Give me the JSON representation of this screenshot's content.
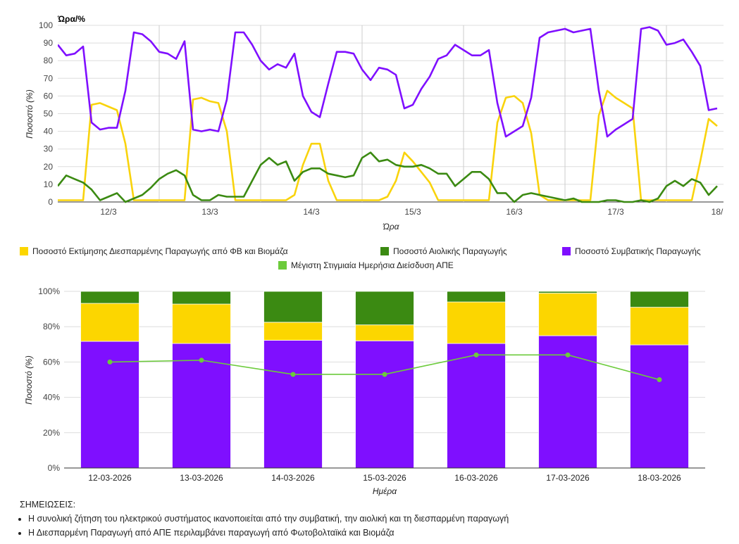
{
  "chart_data": [
    {
      "type": "line",
      "title": "Ώρα/%",
      "xlabel": "Ώρα",
      "ylabel": "Ποσοστό (%)",
      "ylim": [
        0,
        100
      ],
      "yticks": [
        0,
        10,
        20,
        30,
        40,
        50,
        60,
        70,
        80,
        90,
        100
      ],
      "xlim": [
        "12/3 00:00",
        "18/3 13:30"
      ],
      "xtick_labels": [
        "12/3",
        "13/3",
        "14/3",
        "15/3",
        "16/3",
        "17/3",
        "18/"
      ],
      "grid": true,
      "x": [
        "12/3 00:00",
        "12/3 02:00",
        "12/3 04:00",
        "12/3 06:00",
        "12/3 08:00",
        "12/3 10:00",
        "12/3 12:00",
        "12/3 14:00",
        "12/3 16:00",
        "12/3 18:00",
        "12/3 20:00",
        "12/3 22:00",
        "13/3 00:00",
        "13/3 02:00",
        "13/3 04:00",
        "13/3 06:00",
        "13/3 08:00",
        "13/3 10:00",
        "13/3 12:00",
        "13/3 14:00",
        "13/3 16:00",
        "13/3 18:00",
        "13/3 20:00",
        "13/3 22:00",
        "14/3 00:00",
        "14/3 02:00",
        "14/3 04:00",
        "14/3 06:00",
        "14/3 08:00",
        "14/3 10:00",
        "14/3 12:00",
        "14/3 14:00",
        "14/3 16:00",
        "14/3 18:00",
        "14/3 20:00",
        "14/3 22:00",
        "15/3 00:00",
        "15/3 02:00",
        "15/3 04:00",
        "15/3 06:00",
        "15/3 08:00",
        "15/3 10:00",
        "15/3 12:00",
        "15/3 14:00",
        "15/3 16:00",
        "15/3 18:00",
        "15/3 20:00",
        "15/3 22:00",
        "16/3 00:00",
        "16/3 02:00",
        "16/3 04:00",
        "16/3 06:00",
        "16/3 08:00",
        "16/3 10:00",
        "16/3 12:00",
        "16/3 14:00",
        "16/3 16:00",
        "16/3 18:00",
        "16/3 20:00",
        "16/3 22:00",
        "17/3 00:00",
        "17/3 02:00",
        "17/3 04:00",
        "17/3 06:00",
        "17/3 08:00",
        "17/3 10:00",
        "17/3 12:00",
        "17/3 14:00",
        "17/3 16:00",
        "17/3 18:00",
        "17/3 20:00",
        "17/3 22:00",
        "18/3 00:00",
        "18/3 02:00",
        "18/3 04:00",
        "18/3 06:00",
        "18/3 08:00",
        "18/3 10:00",
        "18/3 12:00"
      ],
      "series": [
        {
          "name": "Ποσοστό Εκτίμησης Διεσπαρμένης Παραγωγής από ΦΒ και Βιομάζα",
          "color": "#f9d30c",
          "values": [
            1,
            1,
            1,
            1,
            55,
            56,
            54,
            52,
            33,
            1,
            1,
            1,
            1,
            1,
            1,
            1,
            58,
            59,
            57,
            56,
            40,
            1,
            1,
            1,
            1,
            1,
            1,
            1,
            4,
            21,
            33,
            33,
            12,
            1,
            1,
            1,
            1,
            1,
            1,
            3,
            12,
            28,
            23,
            17,
            11,
            1,
            1,
            1,
            1,
            1,
            1,
            1,
            45,
            59,
            60,
            56,
            39,
            4,
            1,
            1,
            1,
            1,
            1,
            1,
            49,
            63,
            59,
            56,
            53,
            1,
            1,
            1,
            1,
            1,
            1,
            1,
            23,
            47,
            43
          ]
        },
        {
          "name": "Ποσοστό Αιολικής Παραγωγής",
          "color": "#3b8a12",
          "values": [
            9,
            15,
            13,
            11,
            7,
            1,
            3,
            5,
            0,
            2,
            4,
            8,
            13,
            16,
            18,
            15,
            4,
            1,
            1,
            4,
            3,
            3,
            3,
            12,
            21,
            25,
            21,
            23,
            12,
            17,
            19,
            19,
            16,
            15,
            14,
            15,
            25,
            28,
            23,
            24,
            21,
            20,
            20,
            21,
            19,
            16,
            16,
            9,
            13,
            17,
            17,
            13,
            5,
            5,
            0,
            4,
            5,
            4,
            3,
            2,
            1,
            2,
            0,
            0,
            0,
            1,
            1,
            0,
            0,
            1,
            0,
            2,
            9,
            12,
            9,
            13,
            11,
            4,
            9
          ]
        },
        {
          "name": "Ποσοστό Συμβατικής Παραγωγής",
          "color": "#7f0fff",
          "values": [
            89,
            83,
            84,
            88,
            45,
            41,
            42,
            42,
            63,
            96,
            95,
            91,
            85,
            84,
            81,
            91,
            41,
            40,
            41,
            40,
            58,
            96,
            96,
            89,
            80,
            75,
            78,
            76,
            84,
            60,
            51,
            48,
            67,
            85,
            85,
            84,
            75,
            69,
            76,
            75,
            72,
            53,
            55,
            64,
            71,
            81,
            83,
            89,
            86,
            83,
            83,
            86,
            56,
            37,
            40,
            43,
            59,
            93,
            96,
            97,
            98,
            96,
            97,
            98,
            63,
            37,
            41,
            44,
            47,
            98,
            99,
            97,
            89,
            90,
            92,
            85,
            77,
            52,
            53
          ]
        }
      ]
    },
    {
      "type": "bar",
      "stacked": true,
      "xlabel": "Ημέρα",
      "ylabel": "Ποσοστό (%)",
      "ylim": [
        0,
        100
      ],
      "ytick_labels": [
        "0%",
        "20%",
        "40%",
        "60%",
        "80%",
        "100%"
      ],
      "grid": true,
      "categories": [
        "12-03-2026",
        "13-03-2026",
        "14-03-2026",
        "15-03-2026",
        "16-03-2026",
        "17-03-2026",
        "18-03-2026"
      ],
      "series": [
        {
          "name": "Ποσοστό Συμβατικής Παραγωγής",
          "color": "#7f0fff",
          "values": [
            71.7,
            70.5,
            72.3,
            72.0,
            70.5,
            74.9,
            69.7
          ]
        },
        {
          "name": "Ποσοστό Εκτίμησης Διεσπαρμένης Παραγωγής από ΦΒ και Βιομάζα",
          "color": "#fcd600",
          "values": [
            21.5,
            22.3,
            10.2,
            9.0,
            23.5,
            24.1,
            21.3
          ]
        },
        {
          "name": "Ποσοστό Αιολικής Παραγωγής",
          "color": "#3b8a12",
          "values": [
            6.8,
            7.2,
            17.5,
            19.0,
            6.0,
            1.0,
            9.0
          ]
        }
      ],
      "line_series": {
        "name": "Μέγιστη Στιγμιαία Ημερήσια Διείσδυση ΑΠΕ",
        "color": "#6ccb3b",
        "values": [
          60,
          61,
          53,
          53,
          64,
          64,
          50
        ]
      }
    }
  ],
  "legend": [
    {
      "label": "Ποσοστό Εκτίμησης Διεσπαρμένης Παραγωγής από ΦΒ και Βιομάζα",
      "color": "#fcd600"
    },
    {
      "label": "Ποσοστό Αιολικής Παραγωγής",
      "color": "#3b8a12"
    },
    {
      "label": "Ποσοστό Συμβατικής Παραγωγής",
      "color": "#7f0fff"
    },
    {
      "label": "Μέγιστη Στιγμιαία Ημερήσια Διείσδυση ΑΠΕ",
      "color": "#6ccb3b"
    }
  ],
  "notes": {
    "title": "ΣΗΜΕΙΩΣΕΙΣ:",
    "items": [
      "Η συνολική ζήτηση του ηλεκτρικού συστήματος ικανοποιείται από την συμβατική, την αιολική και τη διεσπαρμένη παραγωγή",
      "Η Διεσπαρμένη Παραγωγή από ΑΠΕ περιλαμβάνει παραγωγή από Φωτοβολταϊκά και Βιομάζα"
    ]
  }
}
